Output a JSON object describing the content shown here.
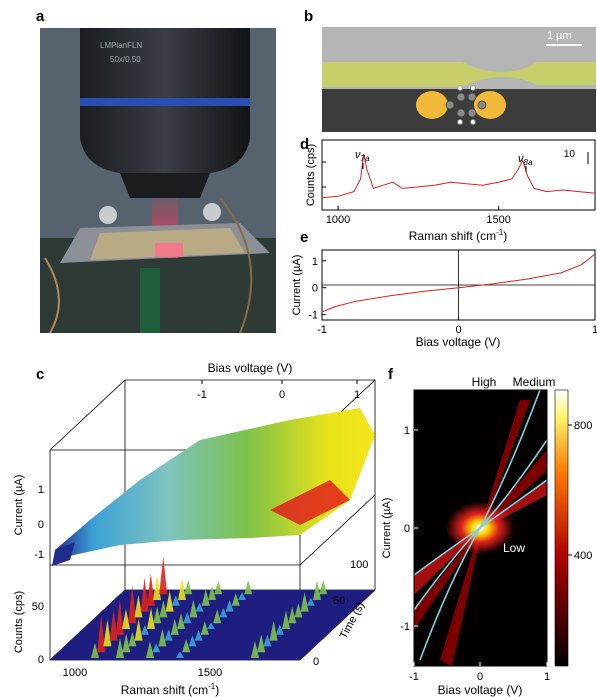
{
  "figure": {
    "panel_labels": {
      "a": "a",
      "b": "b",
      "c": "c",
      "d": "d",
      "e": "e",
      "f": "f"
    },
    "panel_a": {
      "objective_text": "LMPlanFLN 50x/0.50"
    },
    "panel_b": {
      "scale_bar": "1 µm"
    },
    "panel_d": {
      "ylabel": "Counts (cps)",
      "xlabel": "Raman shift (cm",
      "xlabel_sup": "-1",
      "xlabel_end": ")",
      "xticks": [
        "1000",
        "1500"
      ],
      "scale_label": "10",
      "peak1": "ν",
      "peak1_sub": "7a",
      "peak2": "ν",
      "peak2_sub": "8a"
    },
    "panel_e": {
      "ylabel": "Current (µA)",
      "xlabel": "Bias voltage (V)",
      "xticks": [
        "-1",
        "0",
        "1"
      ],
      "yticks": [
        "1",
        "0",
        "-1"
      ]
    },
    "panel_c": {
      "top_axis_label": "Bias voltage (V)",
      "top_ticks": [
        "-1",
        "0",
        "1"
      ],
      "current_label": "Current (µA)",
      "current_ticks": [
        "1",
        "0",
        "-1"
      ],
      "counts_label": "Counts (cps)",
      "counts_ticks": [
        "50",
        "0"
      ],
      "xlabel": "Raman shift (cm",
      "xlabel_sup": "-1",
      "xlabel_end": ")",
      "xticks": [
        "1000",
        "1500"
      ],
      "time_label": "Time (s)",
      "time_ticks": [
        "100",
        "50",
        "0"
      ]
    },
    "panel_f": {
      "ylabel": "Current (µA)",
      "xlabel": "Bias voltage (V)",
      "xticks": [
        "-1",
        "0",
        "1"
      ],
      "yticks": [
        "1",
        "0",
        "-1"
      ],
      "colorbar_ticks": [
        "800",
        "400"
      ],
      "label_high": "High",
      "label_medium": "Medium",
      "label_low": "Low"
    },
    "colors": {
      "trace": "#e0211c",
      "fit": "#7fd3e6"
    }
  },
  "chart_data": [
    {
      "type": "line",
      "name_ref": "panel_d",
      "xlabel": "Raman shift (cm-1)",
      "ylabel": "Counts (cps)",
      "xlim": [
        950,
        1800
      ],
      "x": [
        950,
        1000,
        1050,
        1070,
        1080,
        1090,
        1110,
        1140,
        1170,
        1200,
        1250,
        1300,
        1350,
        1400,
        1450,
        1500,
        1540,
        1560,
        1575,
        1590,
        1610,
        1650,
        1700,
        1750,
        1800
      ],
      "y": [
        2,
        2.5,
        4,
        8,
        16,
        11,
        5,
        6,
        7,
        5,
        5.5,
        6,
        7,
        6.5,
        6,
        7,
        8,
        11,
        14,
        9,
        5,
        4,
        4.5,
        4,
        3.5
      ],
      "annotations": [
        "ν7a",
        "ν8a"
      ]
    },
    {
      "type": "line",
      "name_ref": "panel_e",
      "xlabel": "Bias voltage (V)",
      "ylabel": "Current (µA)",
      "xlim": [
        -1,
        1
      ],
      "ylim": [
        -1.2,
        1.4
      ],
      "x": [
        -1,
        -0.9,
        -0.75,
        -0.5,
        -0.25,
        0,
        0.25,
        0.5,
        0.75,
        0.9,
        1
      ],
      "y": [
        -0.9,
        -0.7,
        -0.5,
        -0.3,
        -0.13,
        0,
        0.14,
        0.32,
        0.55,
        0.85,
        1.25
      ]
    },
    {
      "type": "heatmap",
      "name_ref": "panel_f",
      "xlabel": "Bias voltage (V)",
      "ylabel": "Current (µA)",
      "xlim": [
        -1,
        1
      ],
      "ylim": [
        -1.4,
        1.4
      ],
      "colorbar_range": [
        0,
        900
      ],
      "fit_curves": [
        "High",
        "Medium",
        "Low"
      ]
    }
  ]
}
